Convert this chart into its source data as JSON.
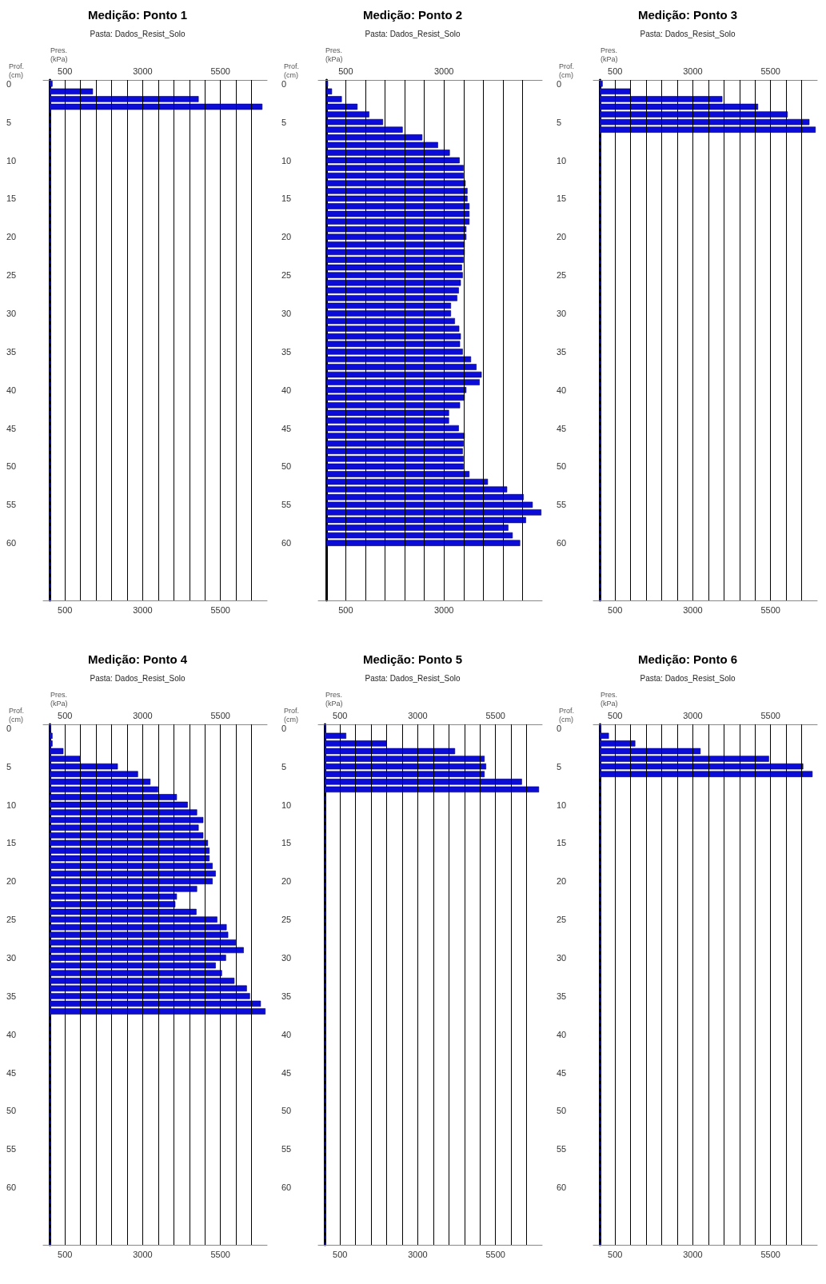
{
  "chart_data": [
    {
      "type": "bar",
      "orientation": "horizontal",
      "title": "Medição: Ponto 1",
      "subtitle": "Pasta: Dados_Resist_Solo",
      "xlabel": "Pres.\n(kPa)",
      "ylabel": "Prof.\n(cm)",
      "color": "#0c0cd8",
      "grid": "x",
      "categories": [
        "0",
        null,
        null,
        null,
        null,
        "5",
        null,
        null,
        null,
        null,
        "10",
        null,
        null,
        null,
        null,
        "15",
        null,
        null,
        null,
        null,
        "20",
        null,
        null,
        null,
        null,
        "25",
        null,
        null,
        null,
        null,
        "30",
        null,
        null,
        null,
        null,
        "35",
        null,
        null,
        null,
        null,
        "40",
        null,
        null,
        null,
        null,
        "45",
        null,
        null,
        null,
        null,
        "50",
        null,
        null,
        null,
        null,
        "55",
        null,
        null,
        null,
        null,
        "60",
        null,
        null,
        null,
        null,
        null,
        null,
        null
      ],
      "values": [
        100,
        1400,
        4800,
        6850,
        null,
        null,
        null,
        null,
        null,
        null,
        null,
        null,
        null,
        null,
        null,
        null,
        null,
        null,
        null,
        null,
        null,
        null,
        null,
        null,
        null,
        null,
        null,
        null,
        null,
        null,
        null,
        null,
        null,
        null,
        null,
        null,
        null,
        null,
        null,
        null,
        null,
        null,
        null,
        null,
        null,
        null,
        null,
        null,
        null,
        null,
        null,
        null,
        null,
        null,
        null,
        null,
        null,
        null,
        null,
        null,
        null,
        null,
        null,
        null,
        null,
        null,
        null,
        null
      ],
      "xlim": [
        -200,
        7000
      ],
      "xticks": [
        {
          "value": 500,
          "label": "500"
        },
        {
          "value": 1000,
          "label": null
        },
        {
          "value": 1500,
          "label": null
        },
        {
          "value": 2000,
          "label": null
        },
        {
          "value": 2500,
          "label": null
        },
        {
          "value": 3000,
          "label": "3000"
        },
        {
          "value": 3500,
          "label": null
        },
        {
          "value": 4000,
          "label": null
        },
        {
          "value": 4500,
          "label": null
        },
        {
          "value": 5000,
          "label": null
        },
        {
          "value": 5500,
          "label": "5500"
        },
        {
          "value": 6000,
          "label": null
        },
        {
          "value": 6500,
          "label": null
        }
      ],
      "x2lim": [
        -200,
        7000
      ],
      "x2ticks": [
        500,
        3000,
        5500
      ],
      "ref_lines": [
        {
          "axis": "x",
          "value": 0,
          "line_style": "dashed",
          "color": "#1a1a8c"
        }
      ]
    },
    {
      "type": "bar",
      "orientation": "horizontal",
      "title": "Medição: Ponto 2",
      "subtitle": "Pasta: Dados_Resist_Solo",
      "xlabel": "Pres.\n(kPa)",
      "ylabel": "Prof.\n(cm)",
      "color": "#0c0cd8",
      "grid": "x",
      "categories": [
        "0",
        null,
        null,
        null,
        null,
        "5",
        null,
        null,
        null,
        null,
        "10",
        null,
        null,
        null,
        null,
        "15",
        null,
        null,
        null,
        null,
        "20",
        null,
        null,
        null,
        null,
        "25",
        null,
        null,
        null,
        null,
        "30",
        null,
        null,
        null,
        null,
        "35",
        null,
        null,
        null,
        null,
        "40",
        null,
        null,
        null,
        null,
        "45",
        null,
        null,
        null,
        null,
        "50",
        null,
        null,
        null,
        null,
        "55",
        null,
        null,
        null,
        null,
        "60",
        null,
        null,
        null,
        null,
        null,
        null,
        null
      ],
      "values": [
        50,
        150,
        400,
        800,
        1100,
        1450,
        1950,
        2450,
        2850,
        3150,
        3400,
        3500,
        3500,
        3550,
        3600,
        3600,
        3650,
        3650,
        3650,
        3570,
        3570,
        3530,
        3530,
        3500,
        3460,
        3480,
        3430,
        3380,
        3340,
        3180,
        3180,
        3280,
        3390,
        3430,
        3410,
        3480,
        3690,
        3830,
        3960,
        3910,
        3570,
        3530,
        3410,
        3130,
        3130,
        3380,
        3530,
        3500,
        3480,
        3500,
        3500,
        3650,
        4120,
        4610,
        5030,
        5260,
        5480,
        5090,
        4640,
        4750,
        4940,
        null,
        null,
        null,
        null,
        null,
        null,
        null
      ],
      "xlim": [
        -200,
        5500
      ],
      "xticks": [
        {
          "value": 500,
          "label": "500"
        },
        {
          "value": 1000,
          "label": null
        },
        {
          "value": 1500,
          "label": null
        },
        {
          "value": 2000,
          "label": null
        },
        {
          "value": 2500,
          "label": null
        },
        {
          "value": 3000,
          "label": "3000"
        },
        {
          "value": 3500,
          "label": null
        },
        {
          "value": 4000,
          "label": null
        },
        {
          "value": 4500,
          "label": null
        },
        {
          "value": 5000,
          "label": null
        }
      ],
      "x2lim": [
        -200,
        5500
      ],
      "x2ticks": [
        500,
        3000
      ]
    },
    {
      "type": "bar",
      "orientation": "horizontal",
      "title": "Medição: Ponto 3",
      "subtitle": "Pasta: Dados_Resist_Solo",
      "xlabel": "Pres.\n(kPa)",
      "ylabel": "Prof.\n(cm)",
      "color": "#0c0cd8",
      "grid": "x",
      "categories": [
        "0",
        null,
        null,
        null,
        null,
        "5",
        null,
        null,
        null,
        null,
        "10",
        null,
        null,
        null,
        null,
        "15",
        null,
        null,
        null,
        null,
        "20",
        null,
        null,
        null,
        null,
        "25",
        null,
        null,
        null,
        null,
        "30",
        null,
        null,
        null,
        null,
        "35",
        null,
        null,
        null,
        null,
        "40",
        null,
        null,
        null,
        null,
        "45",
        null,
        null,
        null,
        null,
        "50",
        null,
        null,
        null,
        null,
        "55",
        null,
        null,
        null,
        null,
        "60",
        null,
        null,
        null,
        null,
        null,
        null,
        null
      ],
      "values": [
        100,
        1000,
        3950,
        5100,
        6050,
        6750,
        6950,
        null,
        null,
        null,
        null,
        null,
        null,
        null,
        null,
        null,
        null,
        null,
        null,
        null,
        null,
        null,
        null,
        null,
        null,
        null,
        null,
        null,
        null,
        null,
        null,
        null,
        null,
        null,
        null,
        null,
        null,
        null,
        null,
        null,
        null,
        null,
        null,
        null,
        null,
        null,
        null,
        null,
        null,
        null,
        null,
        null,
        null,
        null,
        null,
        null,
        null,
        null,
        null,
        null,
        null,
        null,
        null,
        null,
        null,
        null,
        null,
        null
      ],
      "xlim": [
        -200,
        7000
      ],
      "xticks": [
        {
          "value": 500,
          "label": "500"
        },
        {
          "value": 1000,
          "label": null
        },
        {
          "value": 1500,
          "label": null
        },
        {
          "value": 2000,
          "label": null
        },
        {
          "value": 2500,
          "label": null
        },
        {
          "value": 3000,
          "label": "3000"
        },
        {
          "value": 3500,
          "label": null
        },
        {
          "value": 4000,
          "label": null
        },
        {
          "value": 4500,
          "label": null
        },
        {
          "value": 5000,
          "label": null
        },
        {
          "value": 5500,
          "label": "5500"
        },
        {
          "value": 6000,
          "label": null
        },
        {
          "value": 6500,
          "label": null
        }
      ],
      "x2lim": [
        -200,
        7000
      ],
      "x2ticks": [
        500,
        3000,
        5500
      ],
      "ref_lines": [
        {
          "axis": "x",
          "value": 0,
          "line_style": "dashed",
          "color": "#1a1a8c"
        }
      ]
    },
    {
      "type": "bar",
      "orientation": "horizontal",
      "title": "Medição: Ponto 4",
      "subtitle": "Pasta: Dados_Resist_Solo",
      "xlabel": "Pres.\n(kPa)",
      "ylabel": "Prof.\n(cm)",
      "color": "#0c0cd8",
      "grid": "x",
      "categories": [
        "0",
        null,
        null,
        null,
        null,
        "5",
        null,
        null,
        null,
        null,
        "10",
        null,
        null,
        null,
        null,
        "15",
        null,
        null,
        null,
        null,
        "20",
        null,
        null,
        null,
        null,
        "25",
        null,
        null,
        null,
        null,
        "30",
        null,
        null,
        null,
        null,
        "35",
        null,
        null,
        null,
        null,
        "40",
        null,
        null,
        null,
        null,
        "45",
        null,
        null,
        null,
        null,
        "50",
        null,
        null,
        null,
        null,
        "55",
        null,
        null,
        null,
        null,
        "60",
        null,
        null,
        null,
        null,
        null,
        null,
        null
      ],
      "values": [
        50,
        100,
        100,
        450,
        1000,
        2200,
        2850,
        3250,
        3500,
        4100,
        4450,
        4750,
        4950,
        4800,
        4950,
        5100,
        5150,
        5150,
        5250,
        5350,
        5250,
        4750,
        4100,
        4050,
        4730,
        5400,
        5700,
        5750,
        6000,
        6250,
        5680,
        5350,
        5550,
        5950,
        6350,
        6450,
        6800,
        6950,
        null,
        null,
        null,
        null,
        null,
        null,
        null,
        null,
        null,
        null,
        null,
        null,
        null,
        null,
        null,
        null,
        null,
        null,
        null,
        null,
        null,
        null,
        null,
        null,
        null,
        null,
        null,
        null,
        null,
        null
      ],
      "xlim": [
        -200,
        7000
      ],
      "xticks": [
        {
          "value": 500,
          "label": "500"
        },
        {
          "value": 1000,
          "label": null
        },
        {
          "value": 1500,
          "label": null
        },
        {
          "value": 2000,
          "label": null
        },
        {
          "value": 2500,
          "label": null
        },
        {
          "value": 3000,
          "label": "3000"
        },
        {
          "value": 3500,
          "label": null
        },
        {
          "value": 4000,
          "label": null
        },
        {
          "value": 4500,
          "label": null
        },
        {
          "value": 5000,
          "label": null
        },
        {
          "value": 5500,
          "label": "5500"
        },
        {
          "value": 6000,
          "label": null
        },
        {
          "value": 6500,
          "label": null
        }
      ],
      "x2lim": [
        -200,
        7000
      ],
      "x2ticks": [
        500,
        3000,
        5500
      ],
      "ref_lines": [
        {
          "axis": "x",
          "value": 0,
          "line_style": "dashed",
          "color": "#1a1a8c"
        }
      ]
    },
    {
      "type": "bar",
      "orientation": "horizontal",
      "title": "Medição: Ponto 5",
      "subtitle": "Pasta: Dados_Resist_Solo",
      "xlabel": "Pres.\n(kPa)",
      "ylabel": "Prof.\n(cm)",
      "color": "#0c0cd8",
      "grid": "x",
      "categories": [
        "0",
        null,
        null,
        null,
        null,
        "5",
        null,
        null,
        null,
        null,
        "10",
        null,
        null,
        null,
        null,
        "15",
        null,
        null,
        null,
        null,
        "20",
        null,
        null,
        null,
        null,
        "25",
        null,
        null,
        null,
        null,
        "30",
        null,
        null,
        null,
        null,
        "35",
        null,
        null,
        null,
        null,
        "40",
        null,
        null,
        null,
        null,
        "45",
        null,
        null,
        null,
        null,
        "50",
        null,
        null,
        null,
        null,
        "55",
        null,
        null,
        null,
        null,
        "60",
        null,
        null,
        null,
        null,
        null,
        null,
        null
      ],
      "values": [
        50,
        700,
        2000,
        4200,
        5150,
        5200,
        5150,
        6350,
        6900,
        null,
        null,
        null,
        null,
        null,
        null,
        null,
        null,
        null,
        null,
        null,
        null,
        null,
        null,
        null,
        null,
        null,
        null,
        null,
        null,
        null,
        null,
        null,
        null,
        null,
        null,
        null,
        null,
        null,
        null,
        null,
        null,
        null,
        null,
        null,
        null,
        null,
        null,
        null,
        null,
        null,
        null,
        null,
        null,
        null,
        null,
        null,
        null,
        null,
        null,
        null,
        null,
        null,
        null,
        null,
        null,
        null,
        null,
        null
      ],
      "xlim": [
        -200,
        7000
      ],
      "xticks": [
        {
          "value": 500,
          "label": "500"
        },
        {
          "value": 1000,
          "label": null
        },
        {
          "value": 1500,
          "label": null
        },
        {
          "value": 2000,
          "label": null
        },
        {
          "value": 2500,
          "label": null
        },
        {
          "value": 3000,
          "label": "3000"
        },
        {
          "value": 3500,
          "label": null
        },
        {
          "value": 4000,
          "label": null
        },
        {
          "value": 4500,
          "label": null
        },
        {
          "value": 5000,
          "label": null
        },
        {
          "value": 5500,
          "label": "5500"
        },
        {
          "value": 6000,
          "label": null
        },
        {
          "value": 6500,
          "label": null
        }
      ],
      "x2lim": [
        -200,
        7000
      ],
      "x2ticks": [
        500,
        3000,
        5500
      ],
      "ref_lines": [
        {
          "axis": "x",
          "value": 0,
          "line_style": "dashed",
          "color": "#1a1a8c"
        }
      ]
    },
    {
      "type": "bar",
      "orientation": "horizontal",
      "title": "Medição: Ponto 6",
      "subtitle": "Pasta: Dados_Resist_Solo",
      "xlabel": "Pres.\n(kPa)",
      "ylabel": "Prof.\n(cm)",
      "color": "#0c0cd8",
      "grid": "x",
      "categories": [
        "0",
        null,
        null,
        null,
        null,
        "5",
        null,
        null,
        null,
        null,
        "10",
        null,
        null,
        null,
        null,
        "15",
        null,
        null,
        null,
        null,
        "20",
        null,
        null,
        null,
        null,
        "25",
        null,
        null,
        null,
        null,
        "30",
        null,
        null,
        null,
        null,
        "35",
        null,
        null,
        null,
        null,
        "40",
        null,
        null,
        null,
        null,
        "45",
        null,
        null,
        null,
        null,
        "50",
        null,
        null,
        null,
        null,
        "55",
        null,
        null,
        null,
        null,
        "60",
        null,
        null,
        null,
        null,
        null,
        null,
        null
      ],
      "values": [
        50,
        300,
        1150,
        3250,
        5450,
        6550,
        6850,
        null,
        null,
        null,
        null,
        null,
        null,
        null,
        null,
        null,
        null,
        null,
        null,
        null,
        null,
        null,
        null,
        null,
        null,
        null,
        null,
        null,
        null,
        null,
        null,
        null,
        null,
        null,
        null,
        null,
        null,
        null,
        null,
        null,
        null,
        null,
        null,
        null,
        null,
        null,
        null,
        null,
        null,
        null,
        null,
        null,
        null,
        null,
        null,
        null,
        null,
        null,
        null,
        null,
        null,
        null,
        null,
        null,
        null,
        null,
        null,
        null
      ],
      "xlim": [
        -200,
        7000
      ],
      "xticks": [
        {
          "value": 500,
          "label": "500"
        },
        {
          "value": 1000,
          "label": null
        },
        {
          "value": 1500,
          "label": null
        },
        {
          "value": 2000,
          "label": null
        },
        {
          "value": 2500,
          "label": null
        },
        {
          "value": 3000,
          "label": "3000"
        },
        {
          "value": 3500,
          "label": null
        },
        {
          "value": 4000,
          "label": null
        },
        {
          "value": 4500,
          "label": null
        },
        {
          "value": 5000,
          "label": null
        },
        {
          "value": 5500,
          "label": "5500"
        },
        {
          "value": 6000,
          "label": null
        },
        {
          "value": 6500,
          "label": null
        }
      ],
      "x2lim": [
        -200,
        7000
      ],
      "x2ticks": [
        500,
        3000,
        5500
      ],
      "ref_lines": [
        {
          "axis": "x",
          "value": 0,
          "line_style": "dashed",
          "color": "#1a1a8c"
        }
      ]
    }
  ]
}
